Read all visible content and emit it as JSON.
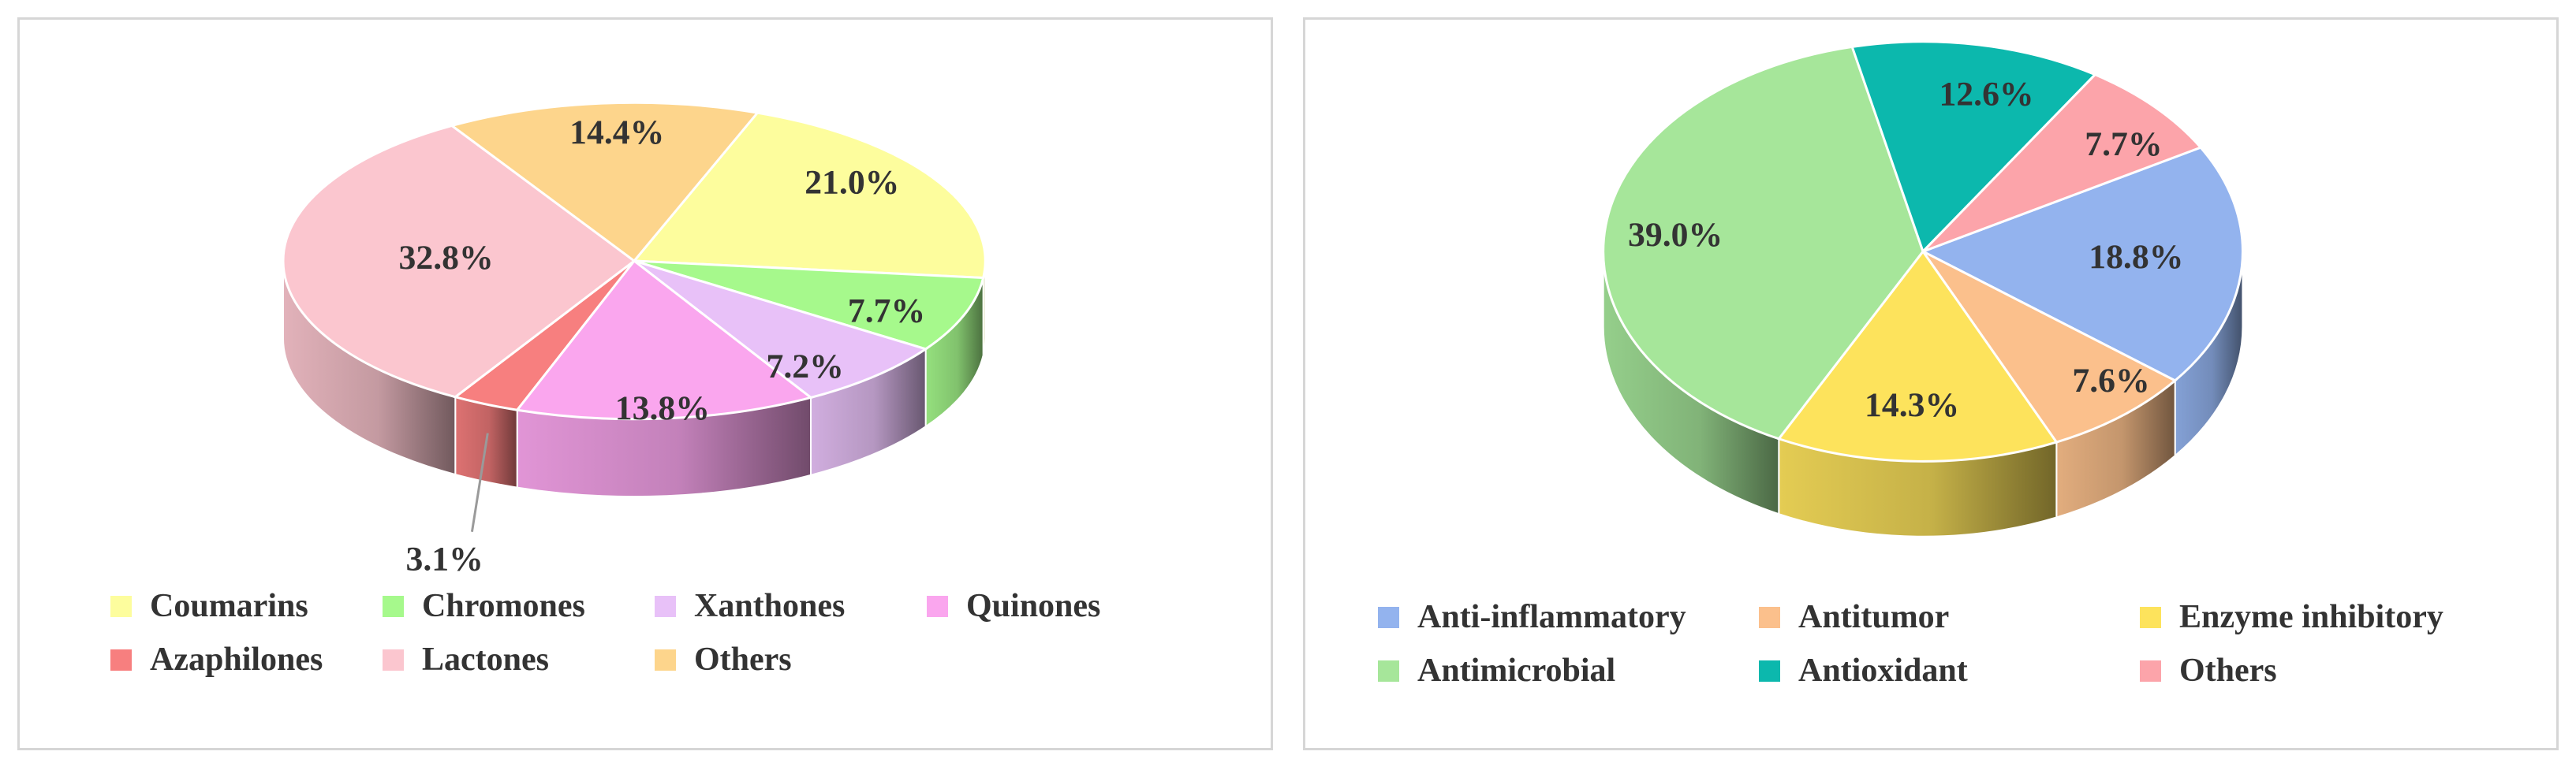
{
  "chart_data": [
    {
      "type": "pie",
      "style": "3d-pie",
      "categories": [
        "Coumarins",
        "Chromones",
        "Xanthones",
        "Quinones",
        "Azaphilones",
        "Lactones",
        "Others"
      ],
      "values": [
        21.0,
        7.7,
        7.2,
        13.8,
        3.1,
        32.8,
        14.4
      ],
      "labels": [
        "21.0%",
        "7.7%",
        "7.2%",
        "13.8%",
        "3.1%",
        "32.8%",
        "14.4%"
      ],
      "colors": [
        "#fdfd9d",
        "#a6f98c",
        "#e8c1f8",
        "#faa6ee",
        "#f77f7f",
        "#fbc6cf",
        "#fdd58c"
      ],
      "legend_position": "bottom"
    },
    {
      "type": "pie",
      "style": "3d-pie",
      "categories": [
        "Anti-inflammatory",
        "Antitumor",
        "Enzyme inhibitory",
        "Antimicrobial",
        "Antioxidant",
        "Others"
      ],
      "values": [
        18.8,
        7.6,
        14.3,
        39.0,
        12.6,
        7.7
      ],
      "labels": [
        "18.8%",
        "7.6%",
        "14.3%",
        "39.0%",
        "12.6%",
        "7.7%"
      ],
      "colors": [
        "#93b3ee",
        "#fbc08c",
        "#fde35c",
        "#a6e69a",
        "#0cb8ad",
        "#fca4aa"
      ],
      "legend_position": "bottom"
    }
  ]
}
